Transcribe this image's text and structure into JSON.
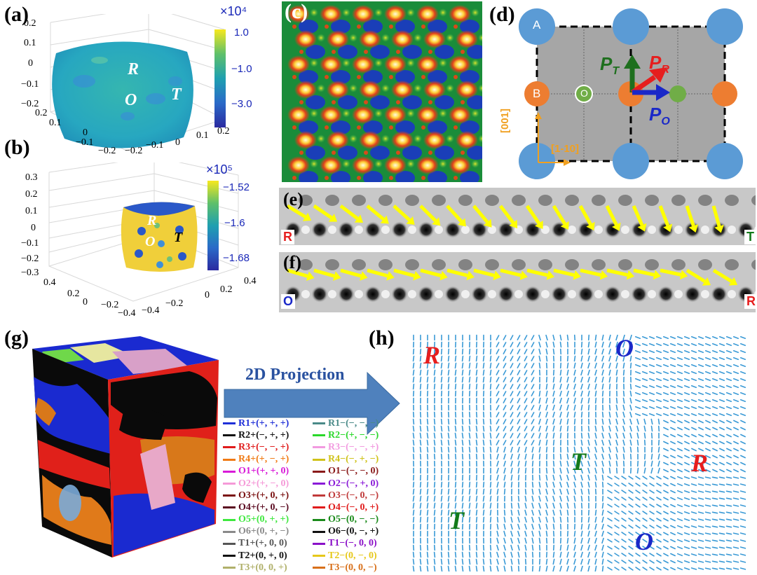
{
  "panels": {
    "a": {
      "label": "(a)",
      "multiplier": "×10⁴",
      "colorbar_ticks": [
        "1.0",
        "−1.0",
        "−3.0"
      ],
      "z_ticks": [
        "0.2",
        "0.1",
        "0",
        "−0.1",
        "−0.2"
      ],
      "x_ticks": [
        "0.2",
        "0.1",
        "0",
        "−0.1",
        "−0.2"
      ],
      "y_ticks": [
        "−0.2",
        "−0.1",
        "0",
        "0.1",
        "0.2"
      ],
      "phases": [
        "R",
        "O",
        "T"
      ]
    },
    "b": {
      "label": "(b)",
      "multiplier": "×10⁵",
      "colorbar_ticks": [
        "−1.52",
        "−1.6",
        "−1.68"
      ],
      "z_ticks": [
        "0.3",
        "0.2",
        "0.1",
        "0",
        "−0.1",
        "−0.2",
        "−0.3"
      ],
      "x_ticks": [
        "0.4",
        "0.2",
        "0",
        "−0.2",
        "−0.4"
      ],
      "y_ticks": [
        "−0.4",
        "−0.2",
        "0",
        "0.2",
        "0.4"
      ],
      "phases": [
        "R",
        "O",
        "T"
      ]
    },
    "c": {
      "label": "(c)"
    },
    "d": {
      "label": "(d)",
      "site_a": "A",
      "site_b": "B",
      "site_o": "O",
      "pt_main": "P",
      "pt_sub": "T",
      "pr_main": "P",
      "pr_sub": "R",
      "po_main": "P",
      "po_sub": "O",
      "axis_vertical": "[001]",
      "axis_horizontal": "[1-10]"
    },
    "e": {
      "label": "(e)",
      "left_tag": "R",
      "right_tag": "T"
    },
    "f": {
      "label": "(f)",
      "left_tag": "O",
      "right_tag": "R"
    },
    "g": {
      "label": "(g)",
      "arrow_text": "2D Projection",
      "legend_left": [
        {
          "text": "R1+(+, +, +)",
          "color": "#1f2fd8"
        },
        {
          "text": "R2+(−, +, +)",
          "color": "#111111"
        },
        {
          "text": "R3+(−, −, +)",
          "color": "#e01b1b"
        },
        {
          "text": "R4+(+, −, +)",
          "color": "#f07a14"
        },
        {
          "text": "O1+(+, +, 0)",
          "color": "#d81ad8"
        },
        {
          "text": "O2+(+, −, 0)",
          "color": "#f59ad8"
        },
        {
          "text": "O3+(+, 0, +)",
          "color": "#7a1010"
        },
        {
          "text": "O4+(+, 0, −)",
          "color": "#5a0a20"
        },
        {
          "text": "O5+(0, +, +)",
          "color": "#3ee83e"
        },
        {
          "text": "O6+(0, +, −)",
          "color": "#8a8a8a"
        },
        {
          "text": "T1+(+, 0, 0)",
          "color": "#555555"
        },
        {
          "text": "T2+(0, +, 0)",
          "color": "#111111"
        },
        {
          "text": "T3+(0, 0, +)",
          "color": "#b0b06a"
        }
      ],
      "legend_right": [
        {
          "text": "R1−(−, −, −)",
          "color": "#4a8a88"
        },
        {
          "text": "R2−(+, −, −)",
          "color": "#2ad82a"
        },
        {
          "text": "R3−(−, −, +)",
          "color": "#f29ae0"
        },
        {
          "text": "R4−(−, +, −)",
          "color": "#cfc21a"
        },
        {
          "text": "O1−(−, −, 0)",
          "color": "#8a1a1a"
        },
        {
          "text": "O2−(−, +, 0)",
          "color": "#8a1ad8"
        },
        {
          "text": "O3−(−, 0, −)",
          "color": "#c03a3a"
        },
        {
          "text": "O4−(−, 0, +)",
          "color": "#e01b1b"
        },
        {
          "text": "O5−(0, −, −)",
          "color": "#1a8a1a"
        },
        {
          "text": "O6−(0, −, +)",
          "color": "#111111"
        },
        {
          "text": "T1−(−, 0, 0)",
          "color": "#8a10c8"
        },
        {
          "text": "T2−(0, −, 0)",
          "color": "#e6c81a"
        },
        {
          "text": "T3−(0, 0, −)",
          "color": "#d8701a"
        }
      ]
    },
    "h": {
      "label": "(h)",
      "phase_labels": [
        {
          "text": "R",
          "color": "#e61e1e"
        },
        {
          "text": "O",
          "color": "#1a28c8"
        },
        {
          "text": "T",
          "color": "#137a1a"
        },
        {
          "text": "R",
          "color": "#e61e1e"
        },
        {
          "text": "T",
          "color": "#137a1a"
        },
        {
          "text": "O",
          "color": "#1a28c8"
        }
      ]
    }
  },
  "colors": {
    "blue_site": "#5b9bd5",
    "orange_site": "#ed7d31",
    "green_site": "#70ad47",
    "cell_gray": "#a6a6a6",
    "arrow_yellow": "#ffff00",
    "quiver": "#3a9ad6",
    "projection_arrow": "#4f81bd"
  }
}
